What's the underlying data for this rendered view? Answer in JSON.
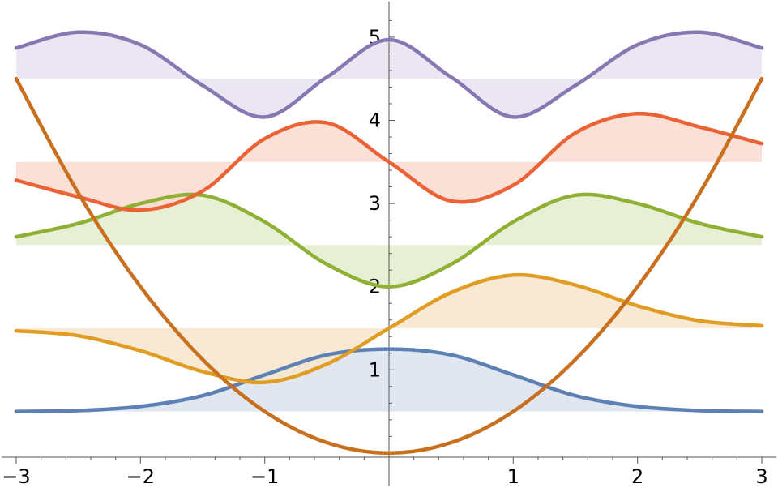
{
  "chart_data": {
    "type": "line",
    "title": "",
    "xlabel": "",
    "ylabel": "",
    "xlim": [
      -3,
      3
    ],
    "ylim": [
      -0.05,
      5.35
    ],
    "grid": false,
    "legend": "none",
    "x_ticks": [
      -3,
      -2,
      -1,
      1,
      2,
      3
    ],
    "x_tick_labels": [
      "−3",
      "−2",
      "−1",
      "1",
      "2",
      "3"
    ],
    "y_ticks": [
      1,
      2,
      3,
      4,
      5
    ],
    "y_tick_labels": [
      "1",
      "2",
      "3",
      "4",
      "5"
    ],
    "potential": {
      "color": "#C8701E",
      "x": [
        -3,
        -2.5,
        -2,
        -1.5,
        -1,
        -0.5,
        0,
        0.5,
        1,
        1.5,
        2,
        2.5,
        3
      ],
      "y": [
        4.5,
        3.125,
        2.0,
        1.125,
        0.5,
        0.125,
        0.0,
        0.125,
        0.5,
        1.125,
        2.0,
        3.125,
        4.5
      ]
    },
    "series": [
      {
        "level": 0.5,
        "color": "#5E81B5",
        "fill": "#DCE3EF",
        "x": [
          -3,
          -2.5,
          -2,
          -1.5,
          -1,
          -0.5,
          0,
          0.5,
          1,
          1.5,
          2,
          2.5,
          3
        ],
        "y": [
          0.5,
          0.51,
          0.56,
          0.69,
          0.94,
          1.18,
          1.25,
          1.18,
          0.94,
          0.69,
          0.56,
          0.51,
          0.5
        ]
      },
      {
        "level": 1.5,
        "color": "#E19C24",
        "fill": "#F6E5CC",
        "x": [
          -3,
          -2.5,
          -2,
          -1.5,
          -1,
          -0.5,
          0,
          0.5,
          1,
          1.5,
          2,
          2.5,
          3
        ],
        "y": [
          1.47,
          1.41,
          1.23,
          0.98,
          0.85,
          1.07,
          1.5,
          1.93,
          2.14,
          2.02,
          1.77,
          1.59,
          1.53
        ]
      },
      {
        "level": 2.5,
        "color": "#8FB032",
        "fill": "#E3ECCE",
        "x": [
          -3,
          -2.5,
          -2,
          -1.5,
          -1,
          -0.5,
          0,
          0.5,
          1,
          1.5,
          2,
          2.5,
          3
        ],
        "y": [
          2.6,
          2.76,
          3.0,
          3.1,
          2.78,
          2.27,
          2.0,
          2.27,
          2.78,
          3.1,
          3.0,
          2.76,
          2.6
        ]
      },
      {
        "level": 3.5,
        "color": "#EB6235",
        "fill": "#FADBD1",
        "x": [
          -3,
          -2.5,
          -2,
          -1.5,
          -1,
          -0.5,
          0,
          0.5,
          1,
          1.5,
          2,
          2.5,
          3
        ],
        "y": [
          3.28,
          3.08,
          2.92,
          3.15,
          3.78,
          3.97,
          3.5,
          3.03,
          3.22,
          3.85,
          4.08,
          3.92,
          3.72
        ]
      },
      {
        "level": 4.5,
        "color": "#8778B3",
        "fill": "#E6E3F0",
        "x": [
          -3,
          -2.5,
          -2,
          -1.5,
          -1,
          -0.5,
          0,
          0.5,
          1,
          1.5,
          2,
          2.5,
          3
        ],
        "y": [
          4.87,
          5.06,
          4.91,
          4.42,
          4.04,
          4.52,
          4.97,
          4.52,
          4.04,
          4.42,
          4.91,
          5.06,
          4.87
        ]
      }
    ]
  }
}
